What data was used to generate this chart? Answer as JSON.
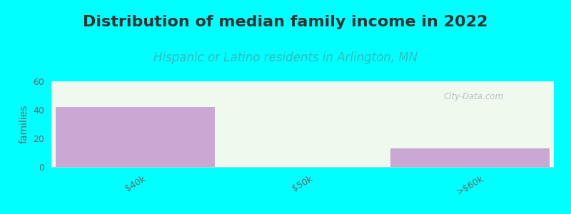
{
  "title": "Distribution of median family income in 2022",
  "subtitle": "Hispanic or Latino residents in Arlington, MN",
  "categories": [
    "$40k",
    "$50k",
    ">$60k"
  ],
  "values": [
    42,
    0,
    13
  ],
  "bar_color": "#c9a8d4",
  "bg_color": "#00ffff",
  "plot_bg_color": "#edfaed",
  "ylabel": "families",
  "ylim": [
    0,
    60
  ],
  "yticks": [
    0,
    20,
    40,
    60
  ],
  "title_fontsize": 16,
  "subtitle_fontsize": 12,
  "title_color": "#333333",
  "subtitle_color": "#33bbbb",
  "tick_color": "#666666",
  "watermark": "City-Data.com",
  "bar_width": 0.95
}
